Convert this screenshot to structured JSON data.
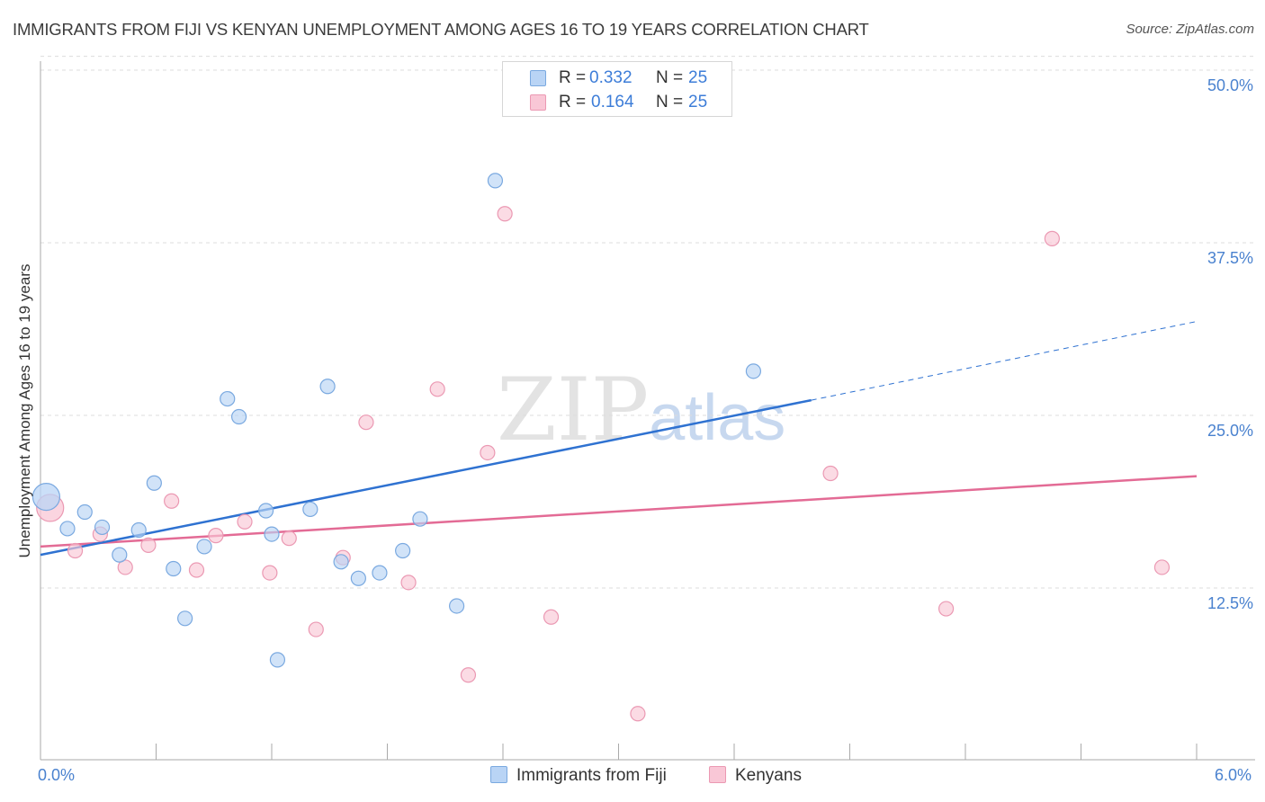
{
  "title": "IMMIGRANTS FROM FIJI VS KENYAN UNEMPLOYMENT AMONG AGES 16 TO 19 YEARS CORRELATION CHART",
  "source": "Source: ZipAtlas.com",
  "watermark": {
    "zip": "ZIP",
    "atlas": "atlas"
  },
  "legend": {
    "r_label": "R = ",
    "n_label": "N = ",
    "rows": [
      {
        "r": "0.332",
        "n": "25"
      },
      {
        "r": "0.164",
        "n": "25"
      }
    ]
  },
  "colors": {
    "fiji_fill": "#b9d4f5",
    "fiji_stroke": "#7aa9e0",
    "fiji_line": "#2f72d1",
    "kenya_fill": "#f9c7d6",
    "kenya_stroke": "#eb99b3",
    "kenya_line": "#e36b95",
    "grid": "#dcdcdc",
    "tick_text": "#4a82cf"
  },
  "chart_data": {
    "type": "scatter",
    "title": "IMMIGRANTS FROM FIJI VS KENYAN UNEMPLOYMENT AMONG AGES 16 TO 19 YEARS CORRELATION CHART",
    "xlabel": "",
    "ylabel": "Unemployment Among Ages 16 to 19 years",
    "xlim": [
      0,
      6
    ],
    "ylim": [
      2,
      51
    ],
    "x_tick_labels": [
      "0.0%",
      "6.0%"
    ],
    "y_ticks": [
      12.5,
      25.0,
      37.5,
      50.0
    ],
    "y_tick_labels": [
      "12.5%",
      "25.0%",
      "37.5%",
      "50.0%"
    ],
    "grid": true,
    "legend_position": "top-center",
    "series": [
      {
        "name": "Immigrants from Fiji",
        "r": 0.332,
        "n": 25,
        "points": [
          [
            0.03,
            19.1
          ],
          [
            0.14,
            16.8
          ],
          [
            0.23,
            18.0
          ],
          [
            0.32,
            16.9
          ],
          [
            0.41,
            14.9
          ],
          [
            0.51,
            16.7
          ],
          [
            0.59,
            20.1
          ],
          [
            0.69,
            13.9
          ],
          [
            0.75,
            10.3
          ],
          [
            0.85,
            15.5
          ],
          [
            0.97,
            26.2
          ],
          [
            1.03,
            24.9
          ],
          [
            1.17,
            18.1
          ],
          [
            1.2,
            16.4
          ],
          [
            1.23,
            7.3
          ],
          [
            1.4,
            18.2
          ],
          [
            1.49,
            27.1
          ],
          [
            1.56,
            14.4
          ],
          [
            1.65,
            13.2
          ],
          [
            1.76,
            13.6
          ],
          [
            1.88,
            15.2
          ],
          [
            1.97,
            17.5
          ],
          [
            2.16,
            11.2
          ],
          [
            2.36,
            42.0
          ],
          [
            3.7,
            28.2
          ]
        ],
        "trend": {
          "x": [
            0.0,
            4.0
          ],
          "y": [
            14.9,
            26.1
          ],
          "dashed_to": [
            6.0,
            31.8
          ]
        }
      },
      {
        "name": "Kenyans",
        "r": 0.164,
        "n": 25,
        "points": [
          [
            0.05,
            18.3
          ],
          [
            0.18,
            15.2
          ],
          [
            0.31,
            16.4
          ],
          [
            0.44,
            14.0
          ],
          [
            0.56,
            15.6
          ],
          [
            0.68,
            18.8
          ],
          [
            0.81,
            13.8
          ],
          [
            0.91,
            16.3
          ],
          [
            1.06,
            17.3
          ],
          [
            1.19,
            13.6
          ],
          [
            1.29,
            16.1
          ],
          [
            1.43,
            9.5
          ],
          [
            1.57,
            14.7
          ],
          [
            1.69,
            24.5
          ],
          [
            1.91,
            12.9
          ],
          [
            2.06,
            26.9
          ],
          [
            2.22,
            6.2
          ],
          [
            2.32,
            22.3
          ],
          [
            2.41,
            39.6
          ],
          [
            2.65,
            10.4
          ],
          [
            3.1,
            3.4
          ],
          [
            4.1,
            20.8
          ],
          [
            4.7,
            11.0
          ],
          [
            5.25,
            37.8
          ],
          [
            5.82,
            14.0
          ]
        ],
        "trend": {
          "x": [
            0.0,
            6.0
          ],
          "y": [
            15.5,
            20.6
          ]
        }
      }
    ]
  }
}
